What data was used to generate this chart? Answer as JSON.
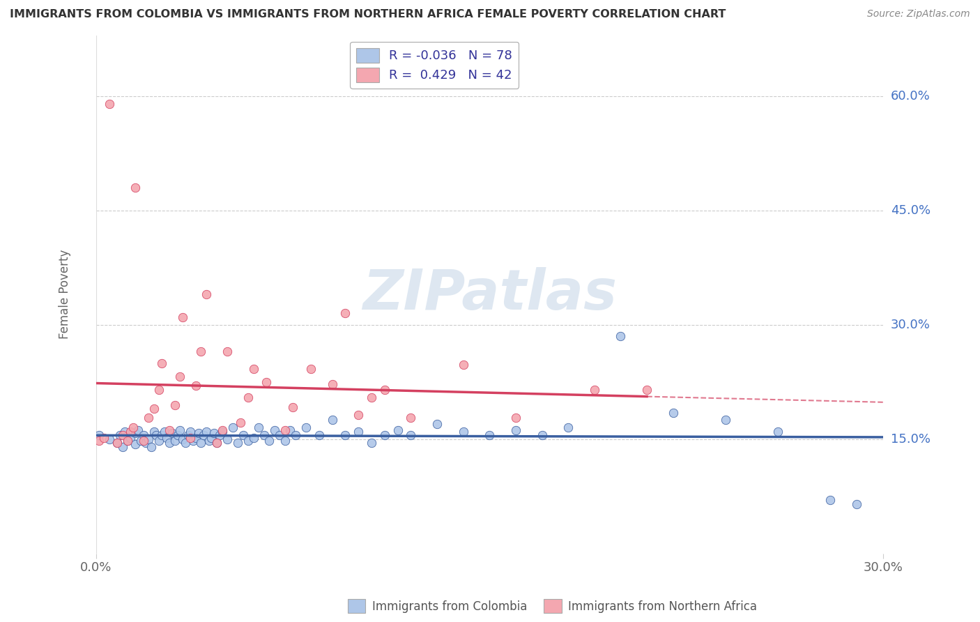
{
  "title": "IMMIGRANTS FROM COLOMBIA VS IMMIGRANTS FROM NORTHERN AFRICA FEMALE POVERTY CORRELATION CHART",
  "source": "Source: ZipAtlas.com",
  "ylabel": "Female Poverty",
  "xlabel_colombia": "Immigrants from Colombia",
  "xlabel_n_africa": "Immigrants from Northern Africa",
  "xlim": [
    0.0,
    0.3
  ],
  "ylim": [
    0.0,
    0.68
  ],
  "yticks": [
    0.15,
    0.3,
    0.45,
    0.6
  ],
  "ytick_labels": [
    "15.0%",
    "30.0%",
    "45.0%",
    "60.0%"
  ],
  "xticks": [
    0.0,
    0.3
  ],
  "xtick_labels": [
    "0.0%",
    "30.0%"
  ],
  "colombia_R": "-0.036",
  "colombia_N": "78",
  "n_africa_R": "0.429",
  "n_africa_N": "42",
  "colombia_color": "#aec6e8",
  "n_africa_color": "#f4a7b0",
  "colombia_line_color": "#3a5fa0",
  "n_africa_line_color": "#d44060",
  "grid_color": "#cccccc",
  "watermark": "ZIPatlas",
  "watermark_color": "#c8d8e8",
  "colombia_x": [
    0.001,
    0.005,
    0.008,
    0.009,
    0.01,
    0.011,
    0.012,
    0.013,
    0.015,
    0.015,
    0.016,
    0.017,
    0.018,
    0.019,
    0.02,
    0.021,
    0.022,
    0.023,
    0.024,
    0.025,
    0.026,
    0.027,
    0.028,
    0.029,
    0.03,
    0.031,
    0.032,
    0.033,
    0.034,
    0.035,
    0.036,
    0.037,
    0.038,
    0.039,
    0.04,
    0.041,
    0.042,
    0.043,
    0.044,
    0.045,
    0.046,
    0.047,
    0.048,
    0.05,
    0.052,
    0.054,
    0.056,
    0.058,
    0.06,
    0.062,
    0.064,
    0.066,
    0.068,
    0.07,
    0.072,
    0.074,
    0.076,
    0.08,
    0.085,
    0.09,
    0.095,
    0.1,
    0.105,
    0.11,
    0.115,
    0.12,
    0.13,
    0.14,
    0.15,
    0.16,
    0.17,
    0.18,
    0.2,
    0.22,
    0.24,
    0.26,
    0.28,
    0.29
  ],
  "colombia_y": [
    0.155,
    0.15,
    0.145,
    0.155,
    0.14,
    0.16,
    0.148,
    0.152,
    0.143,
    0.158,
    0.162,
    0.148,
    0.155,
    0.145,
    0.15,
    0.14,
    0.16,
    0.155,
    0.148,
    0.155,
    0.16,
    0.152,
    0.145,
    0.158,
    0.148,
    0.155,
    0.162,
    0.15,
    0.145,
    0.155,
    0.16,
    0.148,
    0.152,
    0.158,
    0.145,
    0.155,
    0.16,
    0.148,
    0.152,
    0.158,
    0.145,
    0.155,
    0.16,
    0.15,
    0.165,
    0.145,
    0.155,
    0.148,
    0.152,
    0.165,
    0.155,
    0.148,
    0.162,
    0.155,
    0.148,
    0.162,
    0.155,
    0.165,
    0.155,
    0.175,
    0.155,
    0.16,
    0.145,
    0.155,
    0.162,
    0.155,
    0.17,
    0.16,
    0.155,
    0.162,
    0.155,
    0.165,
    0.285,
    0.185,
    0.175,
    0.16,
    0.07,
    0.065
  ],
  "n_africa_x": [
    0.001,
    0.003,
    0.005,
    0.008,
    0.01,
    0.012,
    0.013,
    0.014,
    0.015,
    0.018,
    0.02,
    0.022,
    0.024,
    0.025,
    0.028,
    0.03,
    0.032,
    0.033,
    0.036,
    0.038,
    0.04,
    0.042,
    0.046,
    0.048,
    0.05,
    0.055,
    0.058,
    0.06,
    0.065,
    0.072,
    0.075,
    0.082,
    0.09,
    0.095,
    0.1,
    0.105,
    0.11,
    0.12,
    0.14,
    0.16,
    0.19,
    0.21
  ],
  "n_africa_y": [
    0.148,
    0.152,
    0.59,
    0.145,
    0.155,
    0.148,
    0.16,
    0.165,
    0.48,
    0.148,
    0.178,
    0.19,
    0.215,
    0.25,
    0.162,
    0.195,
    0.232,
    0.31,
    0.152,
    0.22,
    0.265,
    0.34,
    0.145,
    0.162,
    0.265,
    0.172,
    0.205,
    0.242,
    0.225,
    0.162,
    0.192,
    0.242,
    0.222,
    0.315,
    0.182,
    0.205,
    0.215,
    0.178,
    0.248,
    0.178,
    0.215,
    0.215
  ]
}
